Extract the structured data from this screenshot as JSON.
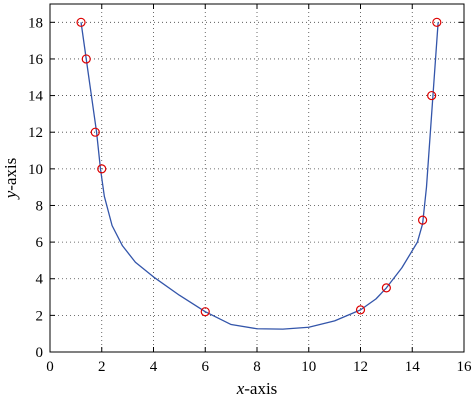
{
  "chart_data": {
    "type": "line",
    "title": "",
    "xlabel": {
      "var": "x",
      "rest": "-axis"
    },
    "ylabel": {
      "var": "y",
      "rest": "-axis"
    },
    "xlim": [
      0,
      16
    ],
    "ylim": [
      0,
      19
    ],
    "xticks": [
      0,
      2,
      4,
      6,
      8,
      10,
      12,
      14,
      16
    ],
    "yticks": [
      0,
      2,
      4,
      6,
      8,
      10,
      12,
      14,
      16,
      18
    ],
    "grid": true,
    "grid_style": "dotted",
    "legend": "none",
    "series": [
      {
        "kind": "fitted-curve",
        "color": "#3355aa",
        "x": [
          1.2,
          1.3,
          1.45,
          1.6,
          1.8,
          1.95,
          2.1,
          2.4,
          2.8,
          3.3,
          4.0,
          5.0,
          6.0,
          7.0,
          8.0,
          9.0,
          10.0,
          11.0,
          12.0,
          12.6,
          13.0,
          13.6,
          14.2,
          14.4,
          14.55,
          14.7,
          14.85,
          15.0
        ],
        "y": [
          18.0,
          17.0,
          15.5,
          14.0,
          12.0,
          10.0,
          8.5,
          6.9,
          5.8,
          4.9,
          4.1,
          3.1,
          2.2,
          1.5,
          1.27,
          1.25,
          1.35,
          1.7,
          2.3,
          2.9,
          3.5,
          4.6,
          6.0,
          7.0,
          9.0,
          12.0,
          15.0,
          18.0
        ]
      },
      {
        "kind": "data-points",
        "marker": "circle-open",
        "color": "#dd0000",
        "x": [
          1.2,
          1.4,
          1.75,
          2.0,
          6.0,
          12.0,
          13.0,
          14.4,
          14.75,
          14.95
        ],
        "y": [
          18.0,
          16.0,
          12.0,
          10.0,
          2.2,
          2.3,
          3.5,
          7.2,
          14.0,
          18.0
        ]
      }
    ]
  }
}
